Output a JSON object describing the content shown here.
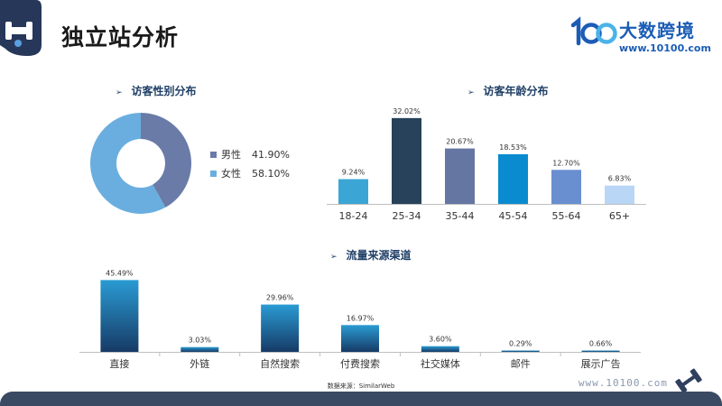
{
  "page": {
    "title": "独立站分析",
    "source_note": "数据来源：SimilarWeb"
  },
  "brand": {
    "logo_text": "100",
    "name": "大数跨境",
    "url": "www.10100.com",
    "footer_url": "www.10100.com",
    "color": "#1b5db6"
  },
  "icons": {
    "corner": "dumbbell-badge-icon",
    "footer": "dumbbell-icon",
    "bullet": "triangle-right-icon"
  },
  "sections": {
    "gender": {
      "title": "访客性别分布"
    },
    "age": {
      "title": "访客年龄分布"
    },
    "traffic": {
      "title": "流量来源渠道"
    }
  },
  "chart_data": [
    {
      "type": "pie",
      "variant": "donut",
      "title": "访客性别分布",
      "slices": [
        {
          "label": "男性",
          "value": 41.9,
          "display": "41.90%",
          "color": "#6a7ba8"
        },
        {
          "label": "女性",
          "value": 58.1,
          "display": "58.10%",
          "color": "#6aaee0"
        }
      ],
      "legend": "right"
    },
    {
      "type": "bar",
      "title": "访客年龄分布",
      "categories": [
        "18-24",
        "25-34",
        "35-44",
        "45-54",
        "55-64",
        "65+"
      ],
      "values": [
        9.24,
        32.02,
        20.67,
        18.53,
        12.7,
        6.83
      ],
      "labels": [
        "9.24%",
        "32.02%",
        "20.67%",
        "18.53%",
        "12.70%",
        "6.83%"
      ],
      "colors": [
        "#3ba6d6",
        "#27425a",
        "#6676a3",
        "#0b8bcf",
        "#6a8fd0",
        "#b9d6f6"
      ],
      "ylim": [
        0,
        35
      ],
      "grid": false
    },
    {
      "type": "bar",
      "title": "流量来源渠道",
      "categories": [
        "直接",
        "外链",
        "自然搜索",
        "付费搜索",
        "社交媒体",
        "邮件",
        "展示广告"
      ],
      "values": [
        45.49,
        3.03,
        29.96,
        16.97,
        3.6,
        0.29,
        0.66
      ],
      "labels": [
        "45.49%",
        "3.03%",
        "29.96%",
        "16.97%",
        "3.60%",
        "0.29%",
        "0.66%"
      ],
      "gradient": [
        "#2a9bd3",
        "#163a66"
      ],
      "ylim": [
        0,
        48
      ],
      "grid": false
    }
  ]
}
